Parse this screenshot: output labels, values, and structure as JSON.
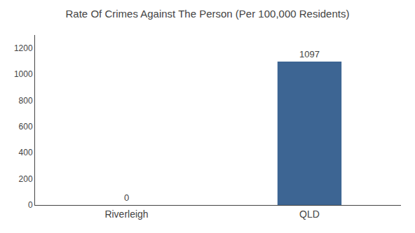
{
  "chart_data": {
    "type": "bar",
    "title": "Rate Of Crimes Against The Person (Per 100,000 Residents)",
    "categories": [
      "Riverleigh",
      "QLD"
    ],
    "values": [
      0,
      1097
    ],
    "color": "#3d6593",
    "ylim": [
      0,
      1300
    ],
    "yticks": [
      0,
      200,
      400,
      600,
      800,
      1000,
      1200
    ],
    "grid": false,
    "data_labels": true
  }
}
